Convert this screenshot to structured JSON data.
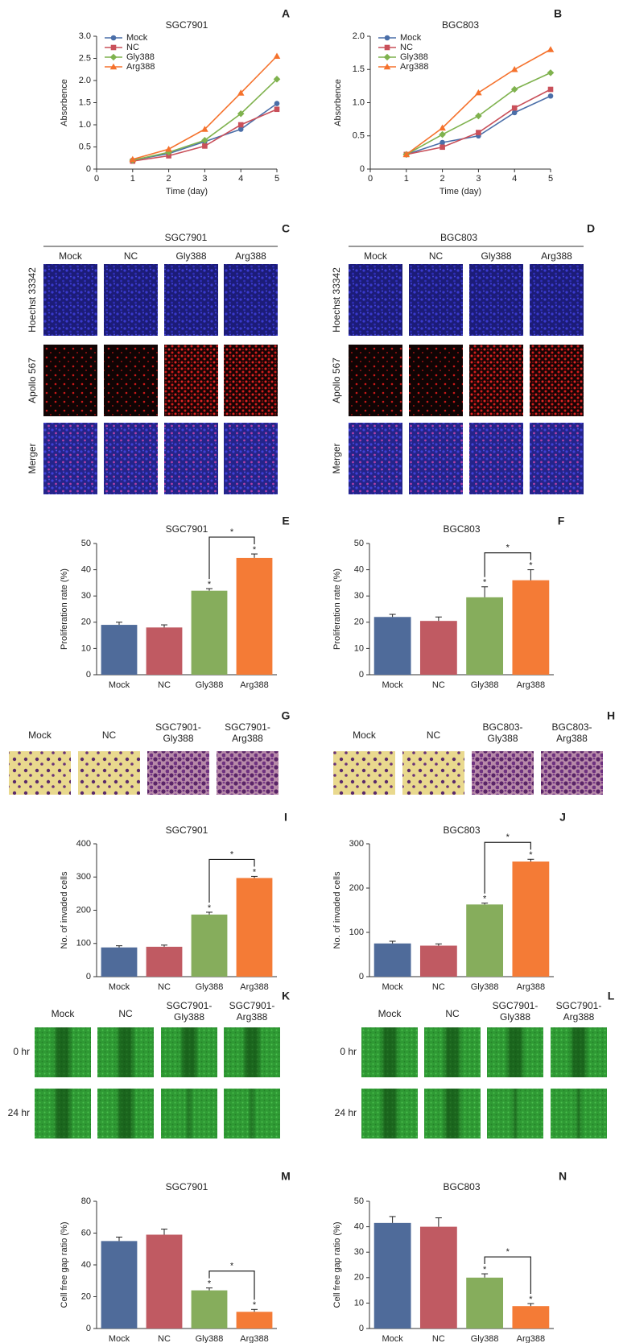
{
  "chart_data": [
    {
      "type": "line",
      "panel": "A",
      "title": "SGC7901",
      "x_label": "Time (day)",
      "y_label": "Absorbence",
      "x": [
        1,
        2,
        3,
        4,
        5
      ],
      "xlim": [
        0,
        5
      ],
      "xticks": [
        0,
        1,
        2,
        3,
        4,
        5
      ],
      "ylim": [
        0,
        3
      ],
      "yticks": [
        0,
        0.5,
        {
          "value": 1,
          "label": "1.0"
        },
        1.5,
        {
          "value": 2,
          "label": "2.0"
        },
        2.5,
        {
          "value": 3,
          "label": "3.0"
        }
      ],
      "legend": "upper left",
      "series": [
        {
          "name": "Mock",
          "color": "#4a6ea8",
          "marker": "circle",
          "values": [
            0.2,
            0.35,
            0.62,
            0.9,
            1.48
          ]
        },
        {
          "name": "NC",
          "color": "#c9505a",
          "marker": "square",
          "values": [
            0.18,
            0.3,
            0.52,
            1.0,
            1.35
          ]
        },
        {
          "name": "Gly388",
          "color": "#7fb24e",
          "marker": "diamond",
          "values": [
            0.2,
            0.38,
            0.65,
            1.25,
            2.03
          ]
        },
        {
          "name": "Arg388",
          "color": "#f5722d",
          "marker": "triangle",
          "values": [
            0.22,
            0.45,
            0.9,
            1.72,
            2.55
          ]
        }
      ]
    },
    {
      "type": "line",
      "panel": "B",
      "title": "BGC803",
      "x_label": "Time (day)",
      "y_label": "Absorbence",
      "x": [
        1,
        2,
        3,
        4,
        5
      ],
      "xlim": [
        0,
        5
      ],
      "xticks": [
        0,
        1,
        2,
        3,
        4,
        5
      ],
      "ylim": [
        0,
        2
      ],
      "yticks": [
        0,
        0.5,
        {
          "value": 1,
          "label": "1.0"
        },
        1.5,
        {
          "value": 2,
          "label": "2.0"
        }
      ],
      "legend": "upper left",
      "series": [
        {
          "name": "Mock",
          "color": "#4a6ea8",
          "marker": "circle",
          "values": [
            0.22,
            0.4,
            0.5,
            0.85,
            1.1
          ]
        },
        {
          "name": "NC",
          "color": "#c9505a",
          "marker": "square",
          "values": [
            0.22,
            0.33,
            0.55,
            0.92,
            1.2
          ]
        },
        {
          "name": "Gly388",
          "color": "#7fb24e",
          "marker": "diamond",
          "values": [
            0.22,
            0.52,
            0.8,
            1.2,
            1.45
          ]
        },
        {
          "name": "Arg388",
          "color": "#f5722d",
          "marker": "triangle",
          "values": [
            0.22,
            0.62,
            1.15,
            1.5,
            1.8
          ]
        }
      ]
    },
    {
      "type": "bar",
      "panel": "E",
      "title": "SGC7901",
      "y_label": "Proliferation rate (%)",
      "categories": [
        "Mock",
        "NC",
        "Gly388",
        "Arg388"
      ],
      "values": [
        19,
        18,
        32,
        44.5
      ],
      "errors": [
        1,
        1,
        0.8,
        1.5
      ],
      "colors": [
        "#4f6b9a",
        "#c05a62",
        "#86ad5c",
        "#f47b36"
      ],
      "ylim": [
        0,
        50
      ],
      "yticks": [
        0,
        10,
        20,
        30,
        40,
        50
      ],
      "annotations": [
        null,
        null,
        "*",
        "*"
      ],
      "bracket_label": "*"
    },
    {
      "type": "bar",
      "panel": "F",
      "title": "BGC803",
      "y_label": "Proliferation rate (%)",
      "categories": [
        "Mock",
        "NC",
        "Gly388",
        "Arg388"
      ],
      "values": [
        22,
        20.5,
        29.5,
        36
      ],
      "errors": [
        1,
        1.5,
        4,
        4
      ],
      "colors": [
        "#4f6b9a",
        "#c05a62",
        "#86ad5c",
        "#f47b36"
      ],
      "ylim": [
        0,
        50
      ],
      "yticks": [
        0,
        10,
        20,
        30,
        40,
        50
      ],
      "annotations": [
        null,
        null,
        "*",
        "*"
      ],
      "bracket_label": "*"
    },
    {
      "type": "bar",
      "panel": "I",
      "title": "SGC7901",
      "y_label": "No. of invaded cells",
      "categories": [
        "Mock",
        "NC",
        "Gly388",
        "Arg388"
      ],
      "values": [
        88,
        90,
        187,
        297
      ],
      "errors": [
        5,
        5,
        7,
        5
      ],
      "colors": [
        "#4f6b9a",
        "#c05a62",
        "#86ad5c",
        "#f47b36"
      ],
      "ylim": [
        0,
        400
      ],
      "yticks": [
        0,
        100,
        200,
        300,
        400
      ],
      "annotations": [
        null,
        null,
        "*",
        "*"
      ],
      "bracket_label": "*"
    },
    {
      "type": "bar",
      "panel": "J",
      "title": "BGC803",
      "y_label": "No. of invaded cells",
      "categories": [
        "Mock",
        "NC",
        "Gly388",
        "Arg388"
      ],
      "values": [
        75,
        70,
        163,
        260
      ],
      "errors": [
        5,
        4,
        3,
        5
      ],
      "colors": [
        "#4f6b9a",
        "#c05a62",
        "#86ad5c",
        "#f47b36"
      ],
      "ylim": [
        0,
        300
      ],
      "yticks": [
        0,
        100,
        200,
        300
      ],
      "annotations": [
        null,
        null,
        "*",
        "*"
      ],
      "bracket_label": "*"
    },
    {
      "type": "bar",
      "panel": "M",
      "title": "SGC7901",
      "y_label": "Cell free gap ratio (%)",
      "categories": [
        "Mock",
        "NC",
        "Gly388",
        "Arg388"
      ],
      "values": [
        55,
        59,
        24,
        10.5
      ],
      "errors": [
        2.5,
        3.5,
        1.5,
        1.5
      ],
      "colors": [
        "#4f6b9a",
        "#c05a62",
        "#86ad5c",
        "#f47b36"
      ],
      "ylim": [
        0,
        80
      ],
      "yticks": [
        0,
        20,
        40,
        60,
        80
      ],
      "annotations": [
        null,
        null,
        "*",
        "*"
      ],
      "bracket_label": "*"
    },
    {
      "type": "bar",
      "panel": "N",
      "title": "BGC803",
      "y_label": "Cell free gap ratio (%)",
      "categories": [
        "Mock",
        "NC",
        "Gly388",
        "Arg388"
      ],
      "values": [
        41.5,
        40,
        20,
        8.8
      ],
      "errors": [
        2.5,
        3.5,
        1.5,
        1
      ],
      "colors": [
        "#4f6b9a",
        "#c05a62",
        "#86ad5c",
        "#f47b36"
      ],
      "ylim": [
        0,
        50
      ],
      "yticks": [
        0,
        10,
        20,
        30,
        40,
        50
      ],
      "annotations": [
        null,
        null,
        "*",
        "*"
      ],
      "bracket_label": "*"
    }
  ],
  "image_panels": [
    {
      "panel": "C",
      "title": "SGC7901",
      "columns": [
        [
          "Mock"
        ],
        [
          "NC"
        ],
        [
          "Gly388"
        ],
        [
          "Arg388"
        ]
      ],
      "rows": [
        "Hoechst 33342",
        "Apollo 567",
        "Merger"
      ]
    },
    {
      "panel": "D",
      "title": "BGC803",
      "columns": [
        [
          "Mock"
        ],
        [
          "NC"
        ],
        [
          "Gly388"
        ],
        [
          "Arg388"
        ]
      ],
      "rows": [
        "Hoechst 33342",
        "Apollo 567",
        "Merger"
      ]
    },
    {
      "panel": "G",
      "columns": [
        [
          "Mock"
        ],
        [
          "NC"
        ],
        [
          "SGC7901-",
          "Gly388"
        ],
        [
          "SGC7901-",
          "Arg388"
        ]
      ]
    },
    {
      "panel": "H",
      "columns": [
        [
          "Mock"
        ],
        [
          "NC"
        ],
        [
          "BGC803-",
          "Gly388"
        ],
        [
          "BGC803-",
          "Arg388"
        ]
      ]
    },
    {
      "panel": "K",
      "columns": [
        [
          "Mock"
        ],
        [
          "NC"
        ],
        [
          "SGC7901-",
          "Gly388"
        ],
        [
          "SGC7901-",
          "Arg388"
        ]
      ],
      "rows": [
        "0 hr",
        "24 hr"
      ]
    },
    {
      "panel": "L",
      "columns": [
        [
          "Mock"
        ],
        [
          "NC"
        ],
        [
          "SGC7901-",
          "Gly388"
        ],
        [
          "SGC7901-",
          "Arg388"
        ]
      ],
      "rows": [
        "0 hr",
        "24 hr"
      ]
    }
  ]
}
